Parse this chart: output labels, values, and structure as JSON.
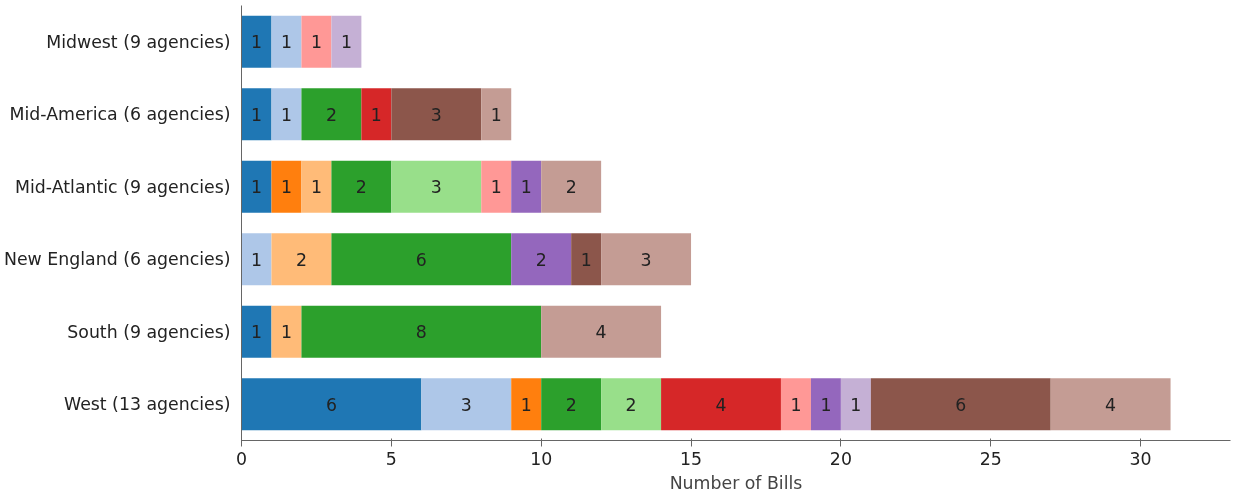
{
  "chart_data": {
    "type": "bar",
    "orientation": "horizontal",
    "stacked": true,
    "data_labels": true,
    "grid": false,
    "xlabel": "Number of Bills",
    "categories": [
      "Midwest (9 agencies)",
      "Mid-America (6 agencies)",
      "Mid-Atlantic (9 agencies)",
      "New England (6 agencies)",
      "South (9 agencies)",
      "West (13 agencies)"
    ],
    "xlim": [
      0,
      33
    ],
    "xticks": [
      0,
      5,
      10,
      15,
      20,
      25,
      30
    ],
    "series": [
      {
        "color": "#1f77b4",
        "values": [
          1,
          1,
          1,
          null,
          1,
          6
        ]
      },
      {
        "color": "#aec7e8",
        "values": [
          1,
          1,
          null,
          1,
          null,
          3
        ]
      },
      {
        "color": "#ff7f0e",
        "values": [
          null,
          null,
          1,
          null,
          null,
          1
        ]
      },
      {
        "color": "#ffbb78",
        "values": [
          null,
          null,
          1,
          2,
          1,
          null
        ]
      },
      {
        "color": "#2ca02c",
        "values": [
          null,
          2,
          2,
          6,
          8,
          2
        ]
      },
      {
        "color": "#98df8a",
        "values": [
          null,
          null,
          3,
          null,
          null,
          2
        ]
      },
      {
        "color": "#d62728",
        "values": [
          null,
          1,
          null,
          null,
          null,
          4
        ]
      },
      {
        "color": "#ff9896",
        "values": [
          1,
          null,
          1,
          null,
          null,
          1
        ]
      },
      {
        "color": "#9467bd",
        "values": [
          null,
          null,
          1,
          2,
          null,
          1
        ]
      },
      {
        "color": "#c5b0d5",
        "values": [
          1,
          null,
          null,
          null,
          null,
          1
        ]
      },
      {
        "color": "#8c564b",
        "values": [
          null,
          3,
          null,
          1,
          null,
          6
        ]
      },
      {
        "color": "#c49c94",
        "values": [
          null,
          1,
          2,
          3,
          4,
          4
        ]
      }
    ]
  }
}
